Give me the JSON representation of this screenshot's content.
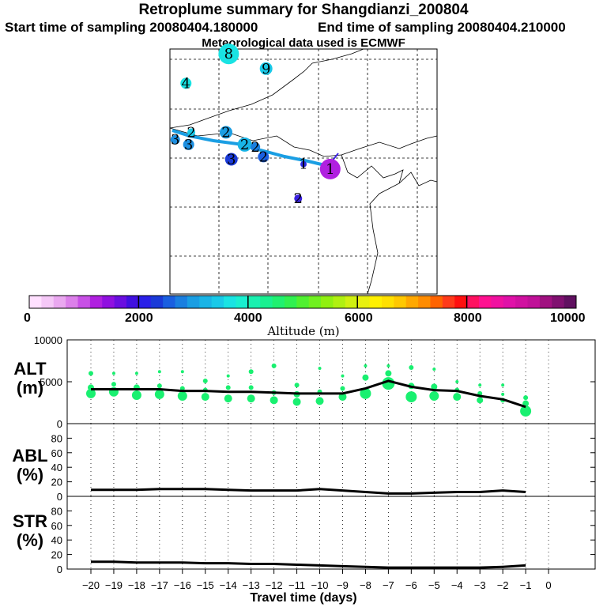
{
  "header": {
    "title": "Retroplume summary for Shangdianzi_200804",
    "start": "Start time of sampling 20080404.180000",
    "end": "End time of sampling 20080404.210000",
    "met": "Meteorological data used is ECMWF"
  },
  "map": {
    "markers": [
      {
        "label": "8",
        "lon": 0.22,
        "lat": 0.02,
        "size": 13,
        "color": "#19e3e3"
      },
      {
        "label": "9",
        "lon": 0.36,
        "lat": 0.08,
        "size": 8,
        "color": "#19c9e8"
      },
      {
        "label": "4",
        "lon": 0.06,
        "lat": 0.14,
        "size": 7,
        "color": "#19e3e3"
      },
      {
        "label": "3",
        "lon": 0.02,
        "lat": 0.37,
        "size": 6,
        "color": "#1d8fe0"
      },
      {
        "label": "2",
        "lon": 0.08,
        "lat": 0.34,
        "size": 5,
        "color": "#19c9e8"
      },
      {
        "label": "3",
        "lon": 0.07,
        "lat": 0.39,
        "size": 7,
        "color": "#1d8fe0"
      },
      {
        "label": "2",
        "lon": 0.21,
        "lat": 0.34,
        "size": 8,
        "color": "#1a9ee3"
      },
      {
        "label": "2",
        "lon": 0.28,
        "lat": 0.39,
        "size": 9,
        "color": "#19b4e6"
      },
      {
        "label": "2",
        "lon": 0.32,
        "lat": 0.4,
        "size": 6,
        "color": "#1a7fe0"
      },
      {
        "label": "2",
        "lon": 0.35,
        "lat": 0.44,
        "size": 7,
        "color": "#1a5fe0"
      },
      {
        "label": "3",
        "lon": 0.23,
        "lat": 0.45,
        "size": 8,
        "color": "#1a3ad8"
      },
      {
        "label": "1",
        "lon": 0.5,
        "lat": 0.47,
        "size": 4,
        "color": "#2a2ae0"
      },
      {
        "label": "1",
        "lon": 0.6,
        "lat": 0.49,
        "size": 13,
        "color": "#b020e0"
      },
      {
        "label": "2",
        "lon": 0.48,
        "lat": 0.61,
        "size": 5,
        "color": "#3a20e0"
      }
    ]
  },
  "colorbar": {
    "ticks": [
      "0",
      "2000",
      "4000",
      "6000",
      "8000",
      "10000"
    ],
    "label": "Altitude (m)",
    "colors": [
      "#ffe0ff",
      "#f5c8f7",
      "#eaa8f0",
      "#dc80ea",
      "#c850e6",
      "#b020e0",
      "#9010e0",
      "#6a0ee0",
      "#4010e0",
      "#2a20e8",
      "#1a3ad8",
      "#1a5fe0",
      "#1a7fe0",
      "#1a9ee3",
      "#19b4e6",
      "#19c9e8",
      "#19e3e3",
      "#19efd0",
      "#19f0b0",
      "#19f090",
      "#20f070",
      "#30f050",
      "#50f030",
      "#70f020",
      "#90f010",
      "#b0f010",
      "#d0f010",
      "#e8f010",
      "#fff000",
      "#ffe000",
      "#ffc800",
      "#ffa800",
      "#ff8c00",
      "#ff6400",
      "#ff3a1a",
      "#ff1010",
      "#ff1060",
      "#ff1090",
      "#f010a0",
      "#e010a8",
      "#d010a0",
      "#c01098",
      "#a01080",
      "#801070",
      "#601060"
    ]
  },
  "chart_data": [
    {
      "type": "line",
      "title": "ALT (m)",
      "xlabel": "Travel time (days)",
      "ylabel": "ALT (m)",
      "ylim": [
        0,
        10000
      ],
      "yticks": [
        "0",
        "5000",
        "10000"
      ],
      "x": [
        -20,
        -19,
        -18,
        -17,
        -16,
        -15,
        -14,
        -13,
        -12,
        -11,
        -10,
        -9,
        -8,
        -7,
        -6,
        -5,
        -4,
        -3,
        -2,
        -1
      ],
      "series": [
        {
          "name": "mean altitude",
          "values": [
            4100,
            4100,
            4100,
            4100,
            3900,
            3900,
            3800,
            3800,
            3700,
            3600,
            3600,
            3600,
            4200,
            5100,
            4400,
            4000,
            3900,
            3300,
            2900,
            2000
          ]
        }
      ],
      "scatter": [
        {
          "x": -20,
          "y": 3600,
          "r": 6
        },
        {
          "x": -20,
          "y": 4300,
          "r": 4
        },
        {
          "x": -20,
          "y": 6000,
          "r": 3
        },
        {
          "x": -19,
          "y": 3800,
          "r": 6
        },
        {
          "x": -19,
          "y": 4700,
          "r": 3
        },
        {
          "x": -19,
          "y": 6000,
          "r": 2
        },
        {
          "x": -18,
          "y": 3400,
          "r": 6
        },
        {
          "x": -18,
          "y": 4300,
          "r": 4
        },
        {
          "x": -18,
          "y": 6000,
          "r": 2
        },
        {
          "x": -17,
          "y": 3500,
          "r": 6
        },
        {
          "x": -17,
          "y": 4500,
          "r": 3
        },
        {
          "x": -17,
          "y": 6200,
          "r": 2
        },
        {
          "x": -16,
          "y": 3300,
          "r": 6
        },
        {
          "x": -16,
          "y": 4200,
          "r": 3
        },
        {
          "x": -16,
          "y": 6200,
          "r": 2
        },
        {
          "x": -15,
          "y": 3200,
          "r": 5
        },
        {
          "x": -15,
          "y": 4000,
          "r": 3
        },
        {
          "x": -15,
          "y": 5100,
          "r": 3
        },
        {
          "x": -14,
          "y": 3000,
          "r": 5
        },
        {
          "x": -14,
          "y": 4300,
          "r": 3
        },
        {
          "x": -14,
          "y": 5700,
          "r": 2
        },
        {
          "x": -13,
          "y": 3000,
          "r": 5
        },
        {
          "x": -13,
          "y": 4300,
          "r": 3
        },
        {
          "x": -13,
          "y": 6200,
          "r": 3
        },
        {
          "x": -12,
          "y": 2800,
          "r": 5
        },
        {
          "x": -12,
          "y": 3700,
          "r": 3
        },
        {
          "x": -12,
          "y": 6900,
          "r": 3
        },
        {
          "x": -11,
          "y": 2600,
          "r": 5
        },
        {
          "x": -11,
          "y": 3500,
          "r": 4
        },
        {
          "x": -11,
          "y": 4600,
          "r": 3
        },
        {
          "x": -10,
          "y": 2700,
          "r": 5
        },
        {
          "x": -10,
          "y": 3800,
          "r": 3
        },
        {
          "x": -10,
          "y": 6600,
          "r": 2
        },
        {
          "x": -9,
          "y": 3200,
          "r": 5
        },
        {
          "x": -9,
          "y": 4200,
          "r": 3
        },
        {
          "x": -9,
          "y": 5700,
          "r": 2
        },
        {
          "x": -8,
          "y": 3600,
          "r": 7
        },
        {
          "x": -8,
          "y": 5500,
          "r": 4
        },
        {
          "x": -8,
          "y": 6900,
          "r": 2
        },
        {
          "x": -7,
          "y": 4800,
          "r": 8
        },
        {
          "x": -7,
          "y": 6000,
          "r": 4
        },
        {
          "x": -7,
          "y": 6900,
          "r": 2
        },
        {
          "x": -6,
          "y": 3200,
          "r": 7
        },
        {
          "x": -6,
          "y": 4500,
          "r": 4
        },
        {
          "x": -6,
          "y": 6700,
          "r": 3
        },
        {
          "x": -5,
          "y": 3300,
          "r": 6
        },
        {
          "x": -5,
          "y": 4400,
          "r": 4
        },
        {
          "x": -5,
          "y": 6500,
          "r": 2
        },
        {
          "x": -4,
          "y": 3200,
          "r": 5
        },
        {
          "x": -4,
          "y": 4000,
          "r": 3
        },
        {
          "x": -4,
          "y": 5000,
          "r": 2
        },
        {
          "x": -3,
          "y": 2800,
          "r": 4
        },
        {
          "x": -3,
          "y": 3600,
          "r": 3
        },
        {
          "x": -3,
          "y": 4600,
          "r": 2
        },
        {
          "x": -2,
          "y": 2800,
          "r": 3
        },
        {
          "x": -2,
          "y": 3500,
          "r": 2
        },
        {
          "x": -2,
          "y": 4600,
          "r": 2
        },
        {
          "x": -1,
          "y": 1500,
          "r": 7
        },
        {
          "x": -1,
          "y": 2400,
          "r": 4
        },
        {
          "x": -1,
          "y": 3100,
          "r": 3
        }
      ]
    },
    {
      "type": "line",
      "title": "ABL (%)",
      "ylabel": "ABL (%)",
      "ylim": [
        0,
        100
      ],
      "yticks": [
        "0",
        "20",
        "40",
        "60",
        "80"
      ],
      "x": [
        -20,
        -19,
        -18,
        -17,
        -16,
        -15,
        -14,
        -13,
        -12,
        -11,
        -10,
        -9,
        -8,
        -7,
        -6,
        -5,
        -4,
        -3,
        -2,
        -1
      ],
      "series": [
        {
          "name": "ABL",
          "values": [
            9,
            9,
            9,
            10,
            10,
            10,
            9,
            8,
            8,
            8,
            10,
            8,
            6,
            4,
            4,
            5,
            6,
            6,
            8,
            6
          ]
        }
      ]
    },
    {
      "type": "line",
      "title": "STR (%)",
      "ylabel": "STR (%)",
      "ylim": [
        0,
        100
      ],
      "yticks": [
        "0",
        "20",
        "40",
        "60",
        "80"
      ],
      "xticks": [
        "−20",
        "−19",
        "−18",
        "−17",
        "−16",
        "−15",
        "−14",
        "−13",
        "−12",
        "−11",
        "−10",
        "−9",
        "−8",
        "−7",
        "−6",
        "−5",
        "−4",
        "−3",
        "−2",
        "−1",
        "0"
      ],
      "x": [
        -20,
        -19,
        -18,
        -17,
        -16,
        -15,
        -14,
        -13,
        -12,
        -11,
        -10,
        -9,
        -8,
        -7,
        -6,
        -5,
        -4,
        -3,
        -2,
        -1
      ],
      "series": [
        {
          "name": "STR",
          "values": [
            10,
            10,
            9,
            9,
            9,
            8,
            8,
            7,
            7,
            6,
            5,
            4,
            3,
            2,
            2,
            2,
            2,
            2,
            3,
            5
          ]
        }
      ]
    }
  ],
  "panel_labels": {
    "alt": [
      "ALT",
      "(m)"
    ],
    "abl": [
      "ABL",
      "(%)"
    ],
    "str": [
      "STR",
      "(%)"
    ]
  }
}
